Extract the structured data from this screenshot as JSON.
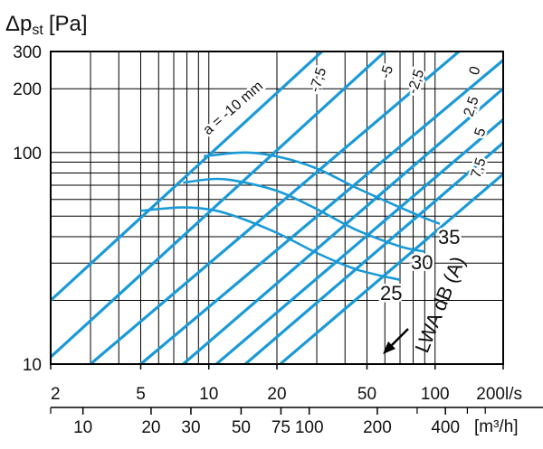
{
  "chart_data": {
    "type": "line",
    "title": "",
    "ylabel": "Δp",
    "ylabel_sub": "st",
    "ylabel_unit": "[Pa]",
    "x_unit_top": "l/s",
    "x_unit_bottom": "[m³/h]",
    "x_scale": "log",
    "y_scale": "log",
    "xlim": [
      2,
      200
    ],
    "ylim": [
      10,
      300
    ],
    "grid": true,
    "x_ticks_top": [
      {
        "value": 2,
        "label": "2"
      },
      {
        "value": 5,
        "label": "5"
      },
      {
        "value": 10,
        "label": "10"
      },
      {
        "value": 20,
        "label": "20"
      },
      {
        "value": 50,
        "label": "50"
      },
      {
        "value": 100,
        "label": "100"
      },
      {
        "value": 200,
        "label": "200"
      }
    ],
    "x_ticks_bottom": [
      {
        "value": 10,
        "label": "10"
      },
      {
        "value": 20,
        "label": "20"
      },
      {
        "value": 30,
        "label": "30"
      },
      {
        "value": 50,
        "label": "50"
      },
      {
        "value": 75,
        "label": "75"
      },
      {
        "value": 100,
        "label": "100"
      },
      {
        "value": 200,
        "label": "200"
      },
      {
        "value": 400,
        "label": "400"
      }
    ],
    "y_ticks": [
      {
        "value": 10,
        "label": "10"
      },
      {
        "value": 100,
        "label": "100"
      },
      {
        "value": 200,
        "label": "200"
      },
      {
        "value": 300,
        "label": "300"
      }
    ],
    "colors": {
      "lines": "#1a9ad6",
      "grid": "#000000"
    },
    "series": [
      {
        "name": "a = -10 mm",
        "label_text": "a = -10 mm",
        "x": [
          2,
          200
        ],
        "y": [
          20,
          1830
        ]
      },
      {
        "name": "-7,5",
        "label_text": "-7,5",
        "x": [
          2,
          200
        ],
        "y": [
          10.8,
          972
        ]
      },
      {
        "name": "-5",
        "label_text": "-5",
        "x": [
          3,
          200
        ],
        "y": [
          10,
          451
        ]
      },
      {
        "name": "-2,5",
        "label_text": "-2,5",
        "x": [
          5,
          200
        ],
        "y": [
          10,
          273
        ]
      },
      {
        "name": "0",
        "label_text": "0",
        "x": [
          7.7,
          200
        ],
        "y": [
          10,
          200
        ]
      },
      {
        "name": "2,5",
        "label_text": "2,5",
        "x": [
          10.8,
          200
        ],
        "y": [
          10,
          143
        ]
      },
      {
        "name": "5",
        "label_text": "5",
        "x": [
          14.5,
          200
        ],
        "y": [
          10,
          111
        ]
      },
      {
        "name": "7,5",
        "label_text": "7,5",
        "x": [
          20.7,
          200
        ],
        "y": [
          10,
          79
        ]
      }
    ],
    "sound_curves": [
      {
        "name": "25",
        "label_text": "25",
        "x": [
          5,
          7.7,
          10.8,
          14.5,
          20.7,
          30,
          45,
          70
        ],
        "y": [
          53,
          55,
          53,
          48,
          41,
          33.5,
          28,
          25
        ]
      },
      {
        "name": "30",
        "label_text": "30",
        "x": [
          7.7,
          10.8,
          14.5,
          20.7,
          30,
          45,
          70,
          90
        ],
        "y": [
          72,
          75,
          72,
          65,
          54,
          43,
          36,
          34
        ]
      },
      {
        "name": "35",
        "label_text": "35",
        "x": [
          9.5,
          14.5,
          20.7,
          30,
          45,
          70,
          90,
          105
        ],
        "y": [
          96,
          100,
          95,
          84,
          68,
          55,
          49,
          46
        ]
      }
    ],
    "annotations": [
      {
        "text": "LWA dB (A)"
      }
    ]
  }
}
